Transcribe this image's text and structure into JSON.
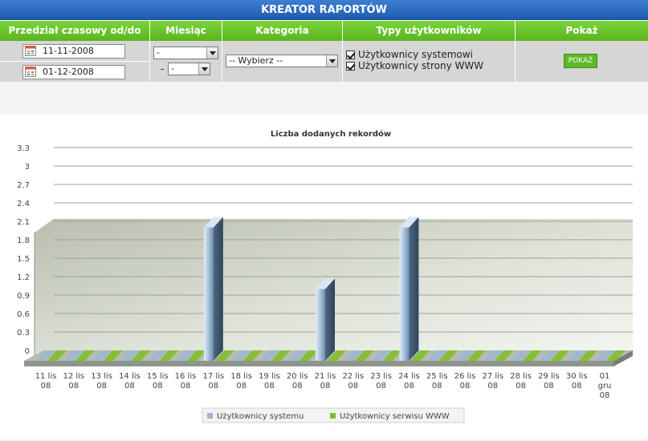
{
  "header": {
    "title": "KREATOR RAPORTÓW"
  },
  "columns": {
    "date_range": "Przedział czasowy od/do",
    "month": "Miesiąc",
    "category": "Kategoria",
    "user_types": "Typy użytkowników",
    "show": "Pokaż"
  },
  "filters": {
    "date_from": "11-11-2008",
    "date_to": "01-12-2008",
    "month_select": "-",
    "month_dash": "-",
    "month_select2": "-",
    "category_select": "-- Wybierz --",
    "user_types": [
      {
        "label": "Użytkownicy systemowi",
        "checked": true
      },
      {
        "label": "Użytkownicy strony WWW",
        "checked": true
      }
    ],
    "show_button": "POKAŻ"
  },
  "colors": {
    "header_green": "#5ab51f",
    "title_blue": "#2a6bc2",
    "system_bar": "#9db7d2",
    "www_bar": "#7fbf2a"
  },
  "chart_data": {
    "type": "bar",
    "title": "Liczba dodanych rekordów",
    "ylim": [
      0,
      3.3
    ],
    "yticks": [
      "0",
      "0.3",
      "0.6",
      "0.9",
      "1.2",
      "1.5",
      "1.8",
      "2.1",
      "2.4",
      "2.7",
      "3",
      "3.3"
    ],
    "grid": true,
    "legend_position": "bottom",
    "categories": [
      "11 lis 08",
      "12 lis 08",
      "13 lis 08",
      "14 lis 08",
      "15 lis 08",
      "16 lis 08",
      "17 lis 08",
      "18 lis 08",
      "19 lis 08",
      "20 lis 08",
      "21 lis 08",
      "22 lis 08",
      "23 lis 08",
      "24 lis 08",
      "25 lis 08",
      "26 lis 08",
      "27 lis 08",
      "28 lis 08",
      "29 lis 08",
      "30 lis 08",
      "01 gru 08"
    ],
    "category_lines": [
      [
        "11 lis",
        "08"
      ],
      [
        "12 lis",
        "08"
      ],
      [
        "13 lis",
        "08"
      ],
      [
        "14 lis",
        "08"
      ],
      [
        "15 lis",
        "08"
      ],
      [
        "16 lis",
        "08"
      ],
      [
        "17 lis",
        "08"
      ],
      [
        "18 lis",
        "08"
      ],
      [
        "19 lis",
        "08"
      ],
      [
        "20 lis",
        "08"
      ],
      [
        "21 lis",
        "08"
      ],
      [
        "22 lis",
        "08"
      ],
      [
        "23 lis",
        "08"
      ],
      [
        "24 lis",
        "08"
      ],
      [
        "25 lis",
        "08"
      ],
      [
        "26 lis",
        "08"
      ],
      [
        "27 lis",
        "08"
      ],
      [
        "28 lis",
        "08"
      ],
      [
        "29 lis",
        "08"
      ],
      [
        "30 lis",
        "08"
      ],
      [
        "01",
        "gru",
        "08"
      ]
    ],
    "series": [
      {
        "name": "Użytkownicy systemu",
        "values": [
          0,
          0,
          0,
          0,
          0,
          0,
          2,
          0,
          0,
          0,
          1,
          0,
          0,
          2,
          0,
          0,
          0,
          0,
          0,
          0,
          0
        ]
      },
      {
        "name": "Użytkownicy serwisu WWW",
        "values": [
          0,
          0,
          0,
          0,
          0,
          0,
          0,
          0,
          0,
          0,
          0,
          0,
          0,
          0,
          0,
          0,
          0,
          0,
          0,
          0,
          0
        ]
      }
    ]
  }
}
